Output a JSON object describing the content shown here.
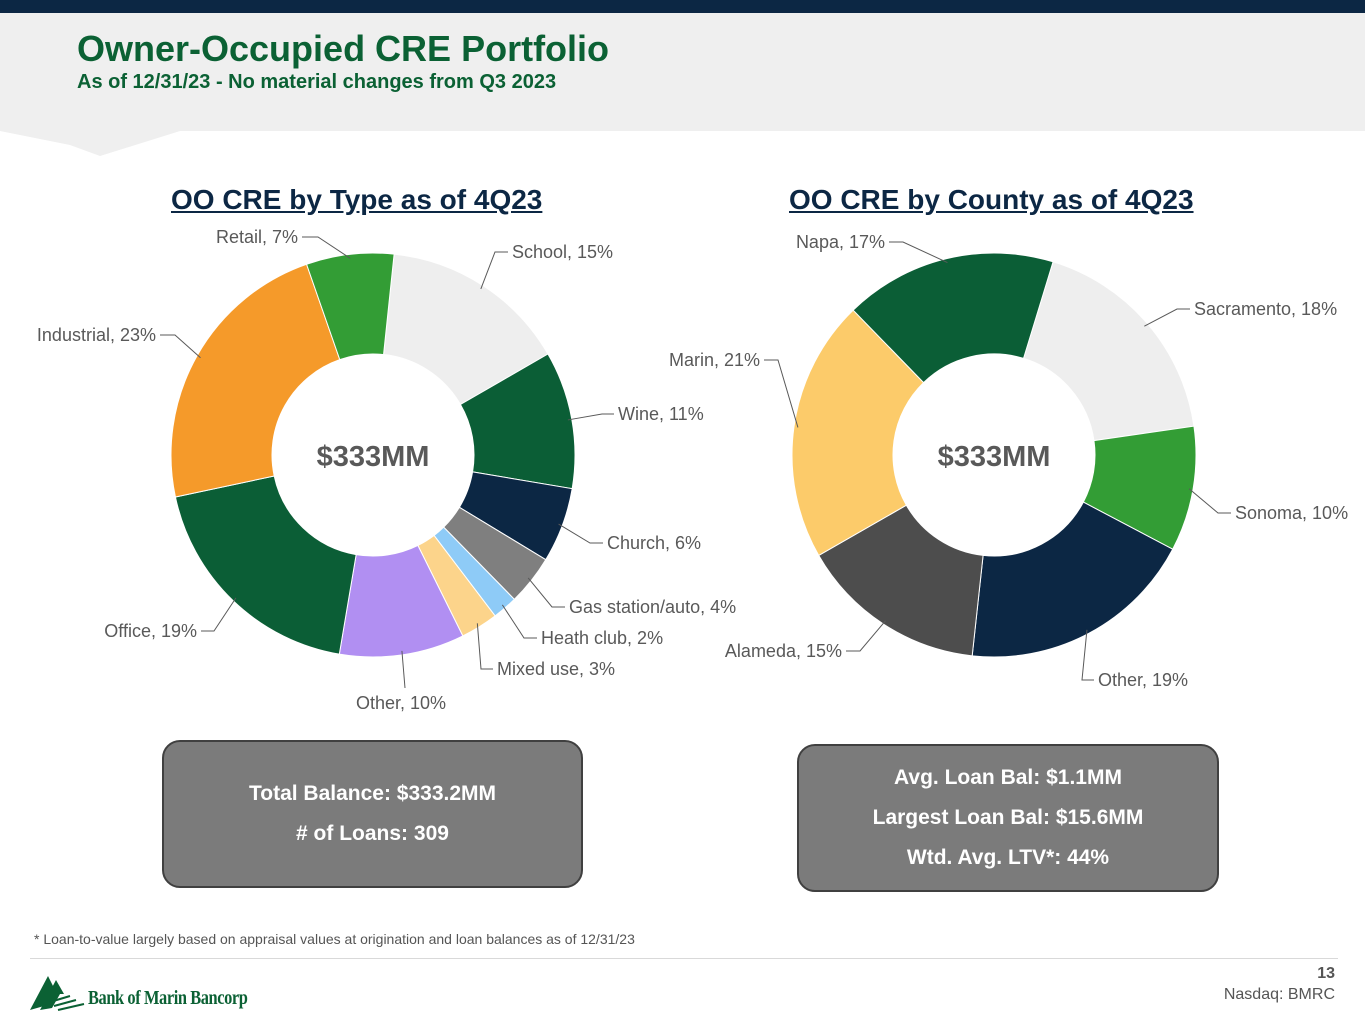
{
  "header": {
    "title": "Owner-Occupied CRE Portfolio",
    "subtitle": "As of 12/31/23  - No material changes from Q3 2023"
  },
  "chart_data": [
    {
      "type": "pie",
      "title": "OO CRE by Type as of 4Q23",
      "center_label": "$333MM",
      "slices": [
        {
          "label": "School, 15%",
          "value": 15,
          "color": "#eeeeee"
        },
        {
          "label": "Wine, 11%",
          "value": 11,
          "color": "#0b5e36"
        },
        {
          "label": "Church, 6%",
          "value": 6,
          "color": "#0c2744"
        },
        {
          "label": "Gas station/auto, 4%",
          "value": 4,
          "color": "#7f7f7f"
        },
        {
          "label": "Heath club, 2%",
          "value": 2,
          "color": "#8ecbf7"
        },
        {
          "label": "Mixed use, 3%",
          "value": 3,
          "color": "#fcd48b"
        },
        {
          "label": "Other, 10%",
          "value": 10,
          "color": "#b18ff2"
        },
        {
          "label": "Office, 19%",
          "value": 19,
          "color": "#0b5e36"
        },
        {
          "label": "Industrial, 23%",
          "value": 23,
          "color": "#f59a2a"
        },
        {
          "label": "Retail, 7%",
          "value": 7,
          "color": "#339d35"
        }
      ]
    },
    {
      "type": "pie",
      "title": "OO CRE by County as of 4Q23",
      "center_label": "$333MM",
      "slices": [
        {
          "label": "Sacramento, 18%",
          "value": 18,
          "color": "#eeeeee"
        },
        {
          "label": "Sonoma, 10%",
          "value": 10,
          "color": "#339d35"
        },
        {
          "label": "Other, 19%",
          "value": 19,
          "color": "#0c2744"
        },
        {
          "label": "Alameda, 15%",
          "value": 15,
          "color": "#4d4d4d"
        },
        {
          "label": "Marin, 21%",
          "value": 21,
          "color": "#fccb6a"
        },
        {
          "label": "Napa, 17%",
          "value": 17,
          "color": "#0b5e36"
        }
      ]
    }
  ],
  "summary_left": {
    "total_balance": "Total Balance: $333.2MM",
    "loans": "# of Loans:  309"
  },
  "summary_right": {
    "avg_loan": "Avg. Loan Bal: $1.1MM",
    "largest_loan": "Largest Loan Bal: $15.6MM",
    "ltv": "Wtd. Avg. LTV*: 44%"
  },
  "footer": {
    "footnote": "* Loan-to-value largely based on appraisal values at origination and loan balances as of 12/31/23",
    "logo_text": "Bank of Marin Bancorp",
    "page_number": "13",
    "ticker": "Nasdaq: BMRC"
  },
  "colors": {
    "brand_green": "#0b6134",
    "navy": "#0c2744",
    "box_gray": "#7b7b7b"
  }
}
